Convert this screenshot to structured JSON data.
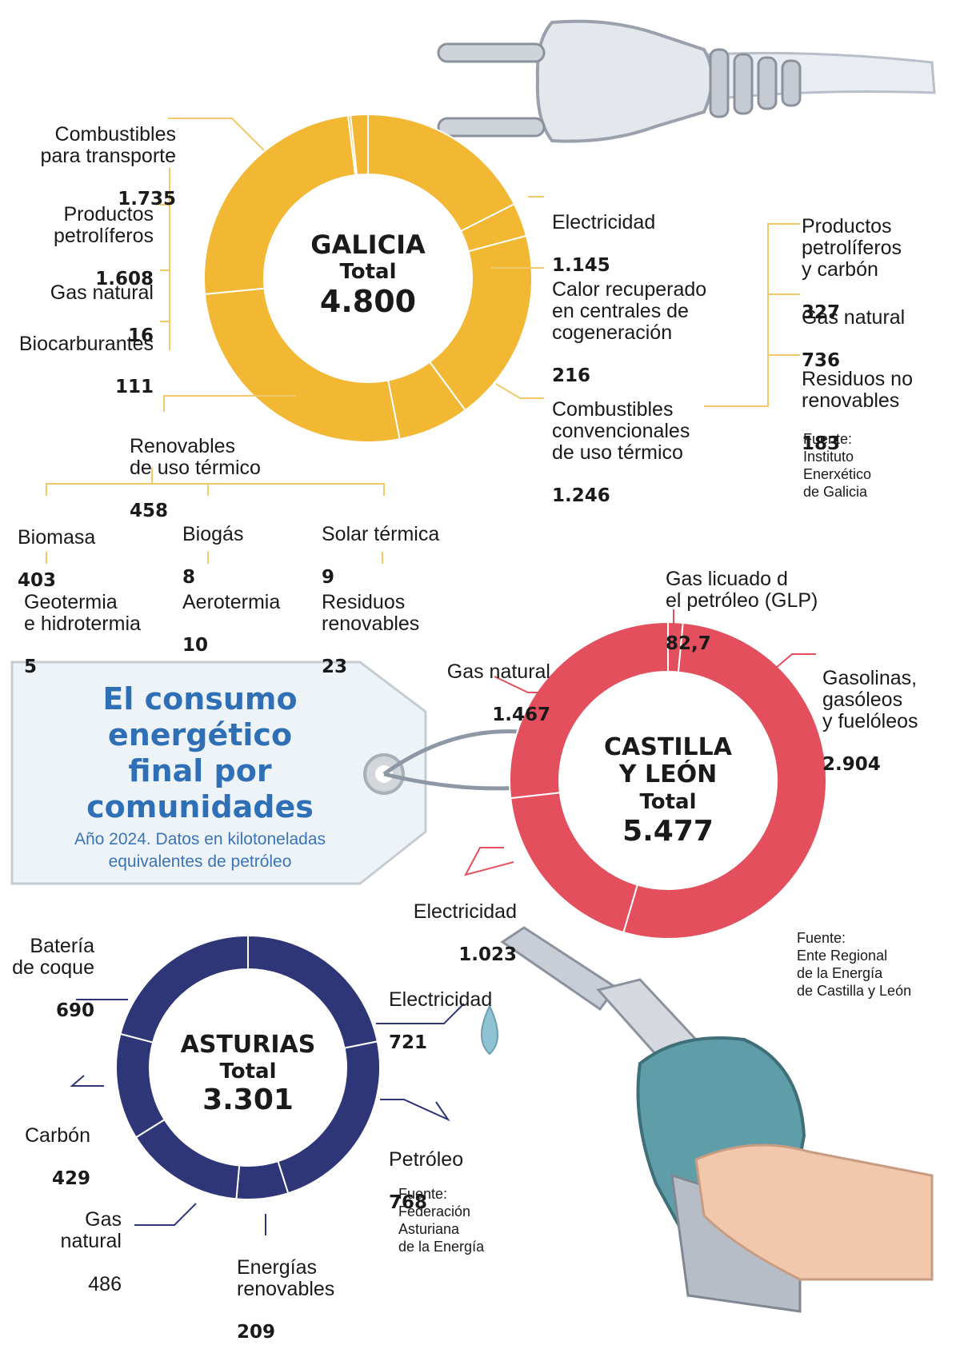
{
  "title": "El consumo\nenergético\nfinal por\ncomunidades",
  "subtitle": "Año 2024. Datos en kilotoneladas\nequivalentes de petróleo",
  "colors": {
    "galicia": "#f2b733",
    "castilla": "#e34f5d",
    "asturias": "#2e3678",
    "title": "#2f6fb6",
    "leader_galicia": "#f2c86b",
    "leader_castilla": "#e34f5d",
    "leader_asturias": "#2e3678"
  },
  "chart_data": [
    {
      "type": "pie",
      "name": "GALICIA",
      "total_label": "Total",
      "total": "4.800",
      "categories": [
        "Electricidad",
        "Calor recuperado en centrales de cogeneración",
        "Combustibles convencionales de uso térmico",
        "Renovables de uso térmico",
        "Combustibles para transporte",
        "Productos petrolíferos",
        "Gas natural",
        "Biocarburantes"
      ],
      "values": [
        1145,
        216,
        1246,
        458,
        1735,
        1608,
        16,
        111
      ],
      "labels": {
        "combustibles_transporte": {
          "text": "Combustibles\npara transporte",
          "value": "1.735"
        },
        "productos_petroliferos": {
          "text": "Productos\npetrolíferos",
          "value": "1.608"
        },
        "gas_natural": {
          "text": "Gas natural",
          "value": "16"
        },
        "biocarburantes": {
          "text": "Biocarburantes",
          "value": "111"
        },
        "electricidad": {
          "text": "Electricidad",
          "value": "1.145"
        },
        "calor": {
          "text": "Calor recuperado\nen centrales de\ncogeneración",
          "value": "216"
        },
        "convencionales": {
          "text": "Combustibles\nconvencionales\nde uso térmico",
          "value": "1.246"
        },
        "renovables": {
          "text": "Renovables\nde uso térmico",
          "value": "458"
        }
      },
      "breakdown_convencionales": [
        {
          "text": "Productos\npetrolíferos\ny carbón",
          "value": "327"
        },
        {
          "text": "Gas natural",
          "value": "736"
        },
        {
          "text": "Residuos no\nrenovables",
          "value": "183"
        }
      ],
      "breakdown_renovables": [
        {
          "text": "Biomasa",
          "value": "403"
        },
        {
          "text": "Biogás",
          "value": "8"
        },
        {
          "text": "Solar térmica",
          "value": "9"
        },
        {
          "text": "Geotermia\ne hidrotermia",
          "value": "5"
        },
        {
          "text": "Aerotermia",
          "value": "10"
        },
        {
          "text": "Residuos\nrenovables",
          "value": "23"
        }
      ],
      "source": "Fuente:\nInstituto\nEnerxético\nde Galicia"
    },
    {
      "type": "pie",
      "name": "CASTILLA\nY LEÓN",
      "total_label": "Total",
      "total": "5.477",
      "categories": [
        "Gas licuado del petróleo (GLP)",
        "Gasolinas, gasóleos y fuelóleos",
        "Electricidad",
        "Gas natural"
      ],
      "values": [
        82.7,
        2904,
        1023,
        1467
      ],
      "labels": {
        "glp": {
          "text": "Gas licuado d\nel petróleo (GLP)",
          "value": "82,7"
        },
        "gasolinas": {
          "text": "Gasolinas,\ngasóleos\ny fuelóleos",
          "value": "2.904"
        },
        "electricidad": {
          "text": "Electricidad",
          "value": "1.023"
        },
        "gas_natural": {
          "text": "Gas natural",
          "value": "1.467"
        }
      },
      "source": "Fuente:\nEnte Regional\nde la Energía\nde Castilla y León"
    },
    {
      "type": "pie",
      "name": "ASTURIAS",
      "total_label": "Total",
      "total": "3.301",
      "categories": [
        "Electricidad",
        "Petróleo",
        "Energías renovables",
        "Gas natural",
        "Carbón",
        "Batería de coque"
      ],
      "values": [
        721,
        768,
        209,
        486,
        429,
        690
      ],
      "labels": {
        "bateria": {
          "text": "Batería\nde coque",
          "value": "690"
        },
        "electricidad": {
          "text": "Electricidad",
          "value": "721"
        },
        "carbon": {
          "text": "Carbón",
          "value": "429"
        },
        "petroleo": {
          "text": "Petróleo",
          "value": "768"
        },
        "gas_natural": {
          "text": "Gas\nnatural",
          "value": "486"
        },
        "renovables": {
          "text": "Energías\nrenovables",
          "value": "209"
        }
      },
      "source": "Fuente:\nFederación\nAsturiana\nde la Energía"
    }
  ]
}
